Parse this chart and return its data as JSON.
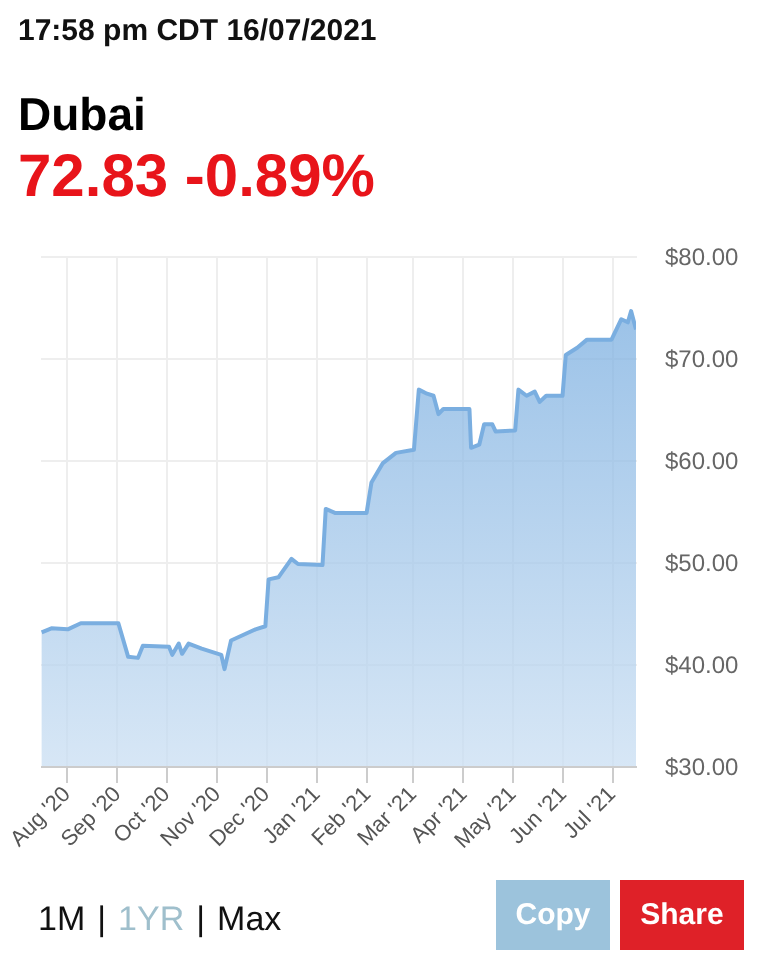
{
  "chart_data": {
    "type": "area",
    "title": "Dubai",
    "subtitle": "72.83 -0.89%",
    "annotations": [
      "17:58 pm CDT 16/07/2021",
      "1M",
      "|",
      "1YR",
      "|",
      "Max",
      "Copy",
      "Share"
    ],
    "x": [
      "2020-07-17",
      "2020-07-23",
      "2020-08-02",
      "2020-08-10",
      "2020-08-19",
      "2020-09-02",
      "2020-09-08",
      "2020-09-14",
      "2020-09-17",
      "2020-10-03",
      "2020-10-05",
      "2020-10-09",
      "2020-10-11",
      "2020-10-15",
      "2020-10-23",
      "2020-11-04",
      "2020-11-06",
      "2020-11-10",
      "2020-11-25",
      "2020-12-01",
      "2020-12-03",
      "2020-12-09",
      "2020-12-17",
      "2020-12-21",
      "2021-01-05",
      "2021-01-07",
      "2021-01-13",
      "2021-02-01",
      "2021-02-04",
      "2021-02-11",
      "2021-02-19",
      "2021-03-02",
      "2021-03-05",
      "2021-03-10",
      "2021-03-14",
      "2021-03-17",
      "2021-03-20",
      "2021-04-05",
      "2021-04-06",
      "2021-04-11",
      "2021-04-14",
      "2021-04-19",
      "2021-04-21",
      "2021-05-03",
      "2021-05-05",
      "2021-05-10",
      "2021-05-15",
      "2021-05-18",
      "2021-05-22",
      "2021-06-01",
      "2021-06-03",
      "2021-06-10",
      "2021-06-16",
      "2021-07-01",
      "2021-07-07",
      "2021-07-11",
      "2021-07-13",
      "2021-07-16"
    ],
    "series": [
      {
        "color": "#7aaee0",
        "values": [
          43.1,
          43.5,
          43.4,
          44.0,
          44.0,
          44.0,
          40.7,
          40.6,
          41.8,
          41.7,
          40.9,
          42.0,
          41.0,
          42.0,
          41.5,
          40.9,
          39.5,
          42.3,
          43.4,
          43.7,
          48.3,
          48.5,
          50.3,
          49.8,
          49.7,
          55.2,
          54.8,
          54.8,
          57.8,
          59.7,
          60.7,
          61.0,
          66.9,
          66.5,
          66.3,
          64.5,
          65.0,
          65.0,
          61.2,
          61.5,
          63.5,
          63.5,
          62.8,
          62.9,
          66.9,
          66.3,
          66.7,
          65.7,
          66.3,
          66.3,
          70.3,
          71.0,
          71.8,
          71.8,
          73.8,
          73.5,
          74.6,
          72.8
        ]
      }
    ],
    "xlim": [
      "2020-07-16",
      "2021-07-16"
    ],
    "xticks": [
      {
        "value": "2020-08-01",
        "label": "Aug '20"
      },
      {
        "value": "2020-09-01",
        "label": "Sep '20"
      },
      {
        "value": "2020-10-01",
        "label": "Oct '20"
      },
      {
        "value": "2020-11-01",
        "label": "Nov '20"
      },
      {
        "value": "2020-12-01",
        "label": "Dec '20"
      },
      {
        "value": "2021-01-01",
        "label": "Jan '21"
      },
      {
        "value": "2021-02-01",
        "label": "Feb '21"
      },
      {
        "value": "2021-03-01",
        "label": "Mar '21"
      },
      {
        "value": "2021-04-01",
        "label": "Apr '21"
      },
      {
        "value": "2021-05-01",
        "label": "May '21"
      },
      {
        "value": "2021-06-01",
        "label": "Jun '21"
      },
      {
        "value": "2021-07-01",
        "label": "Jul '21"
      }
    ],
    "ylim": [
      30,
      80
    ],
    "yticks": [
      {
        "value": 30,
        "label": "$30.00"
      },
      {
        "value": 40,
        "label": "$40.00"
      },
      {
        "value": 50,
        "label": "$50.00"
      },
      {
        "value": 60,
        "label": "$60.00"
      },
      {
        "value": 70,
        "label": "$70.00"
      },
      {
        "value": 80,
        "label": "$80.00"
      }
    ],
    "grid": true
  }
}
